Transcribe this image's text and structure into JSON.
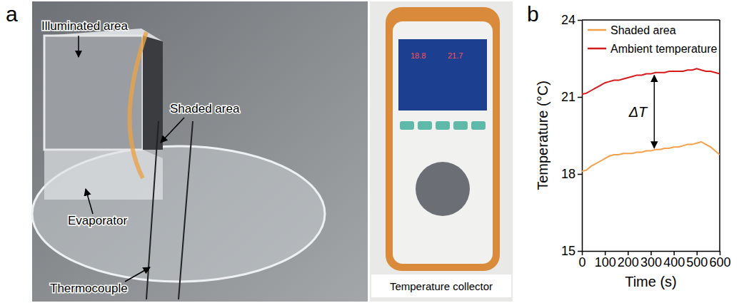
{
  "photo_panel": {
    "panel_label": "a",
    "labels": [
      "Illuminated area",
      "Shaded area",
      "Evaporator",
      "Thermocouple"
    ],
    "inset_label": "Temperature collector",
    "screen_readings": [
      "18.8",
      "21.7"
    ]
  },
  "chart_data": {
    "panel_label": "b",
    "type": "line",
    "x_label": "Time (s)",
    "y_label": "Temperature (°C)",
    "x": [
      0,
      20,
      40,
      60,
      80,
      100,
      120,
      140,
      160,
      180,
      200,
      220,
      240,
      260,
      280,
      300,
      320,
      340,
      360,
      380,
      400,
      420,
      440,
      460,
      480,
      500,
      520,
      540,
      560,
      580,
      600
    ],
    "xlim": [
      0,
      600
    ],
    "xticks": [
      0,
      100,
      200,
      300,
      400,
      500,
      600
    ],
    "ylim": [
      15,
      24
    ],
    "yticks": [
      15,
      18,
      21,
      24
    ],
    "legend": "upper left",
    "series": [
      {
        "name": "Shaded area",
        "color": "#f5a04b",
        "values": [
          18.1,
          18.15,
          18.3,
          18.4,
          18.5,
          18.6,
          18.7,
          18.75,
          18.75,
          18.8,
          18.8,
          18.8,
          18.85,
          18.85,
          18.9,
          18.9,
          18.95,
          18.95,
          19.0,
          19.0,
          19.05,
          19.05,
          19.1,
          19.15,
          19.15,
          19.2,
          19.25,
          19.15,
          19.05,
          18.9,
          18.75
        ]
      },
      {
        "name": "Ambient temperature",
        "color": "#d7191c",
        "values": [
          21.1,
          21.15,
          21.25,
          21.35,
          21.45,
          21.55,
          21.6,
          21.65,
          21.65,
          21.7,
          21.75,
          21.8,
          21.85,
          21.85,
          21.9,
          21.9,
          21.95,
          21.95,
          21.95,
          22.0,
          22.0,
          22.0,
          22.0,
          22.05,
          22.05,
          22.1,
          22.05,
          22.0,
          22.0,
          21.95,
          21.9
        ]
      }
    ],
    "annotations": [
      {
        "text": "ΔT",
        "x": 315,
        "y_from": 18.95,
        "y_to": 21.9
      }
    ]
  }
}
